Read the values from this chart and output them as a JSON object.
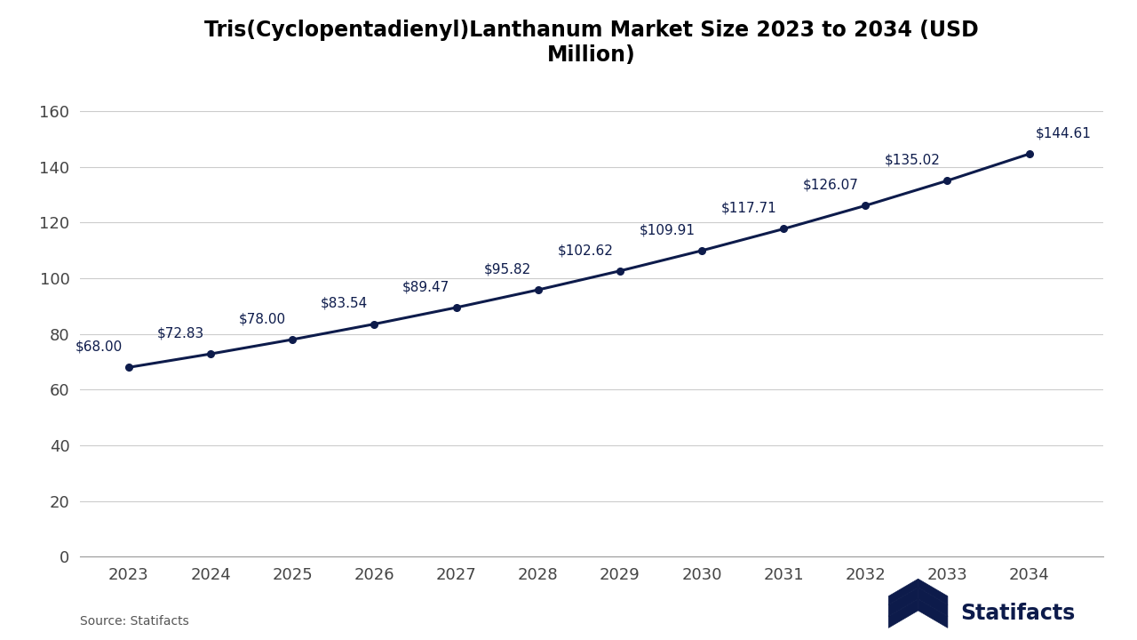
{
  "title": "Tris(Cyclopentadienyl)Lanthanum Market Size 2023 to 2034 (USD\nMillion)",
  "years": [
    2023,
    2024,
    2025,
    2026,
    2027,
    2028,
    2029,
    2030,
    2031,
    2032,
    2033,
    2034
  ],
  "values": [
    68.0,
    72.83,
    78.0,
    83.54,
    89.47,
    95.82,
    102.62,
    109.91,
    117.71,
    126.07,
    135.02,
    144.61
  ],
  "labels": [
    "$68.00",
    "$72.83",
    "$78.00",
    "$83.54",
    "$89.47",
    "$95.82",
    "$102.62",
    "$109.91",
    "$117.71",
    "$126.07",
    "$135.02",
    "$144.61"
  ],
  "line_color": "#0d1b4b",
  "marker_color": "#0d1b4b",
  "background_color": "#ffffff",
  "grid_color": "#cccccc",
  "title_color": "#000000",
  "tick_color": "#444444",
  "source_text": "Source: Statifacts",
  "statifacts_text": "Statifacts",
  "ylim": [
    0,
    170
  ],
  "yticks": [
    0,
    20,
    40,
    60,
    80,
    100,
    120,
    140,
    160
  ],
  "title_fontsize": 17,
  "label_fontsize": 11,
  "tick_fontsize": 13
}
